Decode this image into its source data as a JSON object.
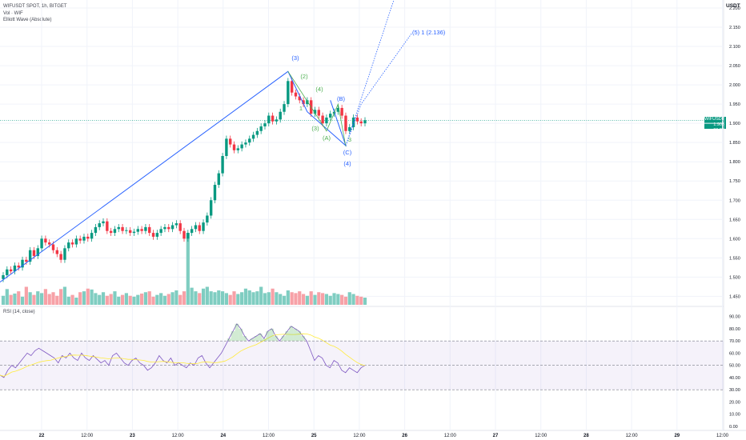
{
  "header": {
    "symbol_line": "WIFUSDT SPOT, 1h, BITGET",
    "vol_line": "Vol · WIF",
    "indicator_line": "Elliott Wave (Absolute)"
  },
  "currency": "USDT",
  "last_price": {
    "symbol": "WIFUSDT",
    "value": "1.908",
    "countdown": "06:23"
  },
  "colors": {
    "up": "#089981",
    "down": "#f23645",
    "vol_up": "#7fcdc1",
    "vol_down": "#f7a1a7",
    "wave": "#2962ff",
    "wave_minor": "#4caf50",
    "rsi": "#7e57c2",
    "rsi_ma": "#ffeb3b"
  },
  "chart_data": {
    "type": "candlestick",
    "y_ticks": [
      "2.200",
      "2.150",
      "2.100",
      "2.050",
      "2.000",
      "1.950",
      "1.900",
      "1.850",
      "1.800",
      "1.750",
      "1.700",
      "1.650",
      "1.600",
      "1.550",
      "1.500",
      "1.450"
    ],
    "ylim": [
      1.43,
      2.2
    ],
    "x_ticks": [
      "22",
      "12:00",
      "23",
      "12:00",
      "24",
      "12:00",
      "25",
      "12:00",
      "26",
      "12:00",
      "27",
      "12:00",
      "28",
      "12:00",
      "29",
      "12:00"
    ],
    "candles_close": [
      1.505,
      1.52,
      1.515,
      1.53,
      1.525,
      1.545,
      1.54,
      1.57,
      1.555,
      1.575,
      1.6,
      1.59,
      1.585,
      1.57,
      1.56,
      1.545,
      1.575,
      1.59,
      1.585,
      1.6,
      1.595,
      1.605,
      1.6,
      1.615,
      1.63,
      1.64,
      1.645,
      1.62,
      1.615,
      1.625,
      1.63,
      1.62,
      1.622,
      1.615,
      1.618,
      1.625,
      1.62,
      1.63,
      1.615,
      1.605,
      1.615,
      1.625,
      1.63,
      1.625,
      1.635,
      1.64,
      1.62,
      1.6,
      1.615,
      1.625,
      1.635,
      1.62,
      1.642,
      1.66,
      1.7,
      1.74,
      1.77,
      1.815,
      1.86,
      1.845,
      1.83,
      1.835,
      1.845,
      1.85,
      1.86,
      1.87,
      1.88,
      1.892,
      1.9,
      1.92,
      1.905,
      1.91,
      1.93,
      1.95,
      2.01,
      1.98,
      1.97,
      1.96,
      1.95,
      1.96,
      1.925,
      1.935,
      1.92,
      1.9,
      1.915,
      1.925,
      1.93,
      1.94,
      1.92,
      1.88,
      1.89,
      1.915,
      1.905,
      1.9,
      1.908
    ],
    "volume": [
      20,
      35,
      22,
      25,
      30,
      18,
      40,
      28,
      22,
      30,
      26,
      35,
      24,
      28,
      20,
      35,
      40,
      18,
      22,
      16,
      28,
      30,
      36,
      34,
      26,
      22,
      28,
      20,
      24,
      30,
      18,
      22,
      26,
      20,
      18,
      22,
      25,
      28,
      30,
      18,
      22,
      26,
      20,
      24,
      28,
      32,
      22,
      30,
      160,
      38,
      30,
      26,
      36,
      40,
      30,
      28,
      32,
      30,
      26,
      22,
      30,
      24,
      28,
      36,
      32,
      28,
      30,
      40,
      26,
      28,
      36,
      28,
      24,
      20,
      32,
      28,
      26,
      30,
      24,
      20,
      30,
      22,
      28,
      26,
      24,
      20,
      26,
      24,
      22,
      18,
      28,
      24,
      20,
      18,
      16
    ],
    "rsi_ticks": [
      "90.00",
      "80.00",
      "70.00",
      "60.00",
      "50.00",
      "40.00",
      "30.00",
      "20.00",
      "10.00",
      "0.00"
    ],
    "rsi_bands": [
      30,
      50,
      70
    ],
    "rsi_values": [
      42,
      40,
      46,
      50,
      48,
      52,
      56,
      60,
      58,
      62,
      64,
      62,
      60,
      58,
      56,
      52,
      58,
      56,
      60,
      56,
      54,
      60,
      56,
      54,
      58,
      55,
      52,
      54,
      50,
      58,
      60,
      56,
      52,
      50,
      54,
      56,
      52,
      50,
      46,
      48,
      52,
      58,
      54,
      52,
      56,
      50,
      52,
      50,
      48,
      52,
      50,
      56,
      58,
      52,
      48,
      52,
      56,
      60,
      66,
      72,
      78,
      84,
      80,
      74,
      70,
      72,
      74,
      76,
      72,
      78,
      80,
      74,
      70,
      74,
      78,
      82,
      80,
      78,
      74,
      70,
      62,
      54,
      58,
      56,
      50,
      48,
      54,
      52,
      46,
      44,
      48,
      46,
      44,
      48,
      50
    ],
    "wave_labels": {
      "w3": "(3)",
      "w2": "(2)",
      "w4s": "(4)",
      "w3s": "(3)",
      "wA": "(A)",
      "wB": "(B)",
      "wC": "(C)",
      "w4": "(4)",
      "w1": "1",
      "w3n": "3",
      "target": "(5) 1 (2.136)"
    }
  },
  "rsi_legend": "RSI (14, close)"
}
